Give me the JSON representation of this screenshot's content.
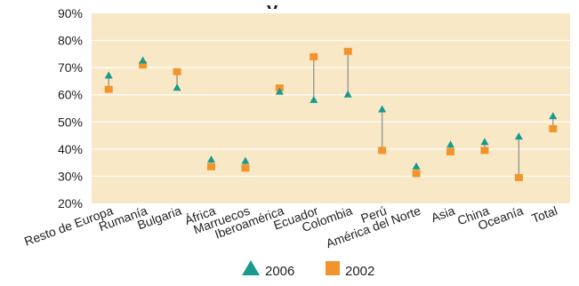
{
  "chart_data": {
    "type": "scatter",
    "title_fragment": "y",
    "categories": [
      "Resto de Europa",
      "Rumanía",
      "Bulgaria",
      "África",
      "Marruecos",
      "Iberoamérica",
      "Ecuador",
      "Colombia",
      "Perú",
      "América del Norte",
      "Asia",
      "China",
      "Oceanía",
      "Total"
    ],
    "series": [
      {
        "name": "2006",
        "marker": "triangle",
        "color": "#1a9a8c",
        "values": [
          67,
          72.5,
          62.5,
          36,
          35.5,
          61,
          58,
          60,
          54.5,
          33.5,
          41.5,
          42.5,
          44.5,
          52
        ]
      },
      {
        "name": "2002",
        "marker": "square",
        "color": "#f2942c",
        "values": [
          62,
          71,
          68.5,
          33.5,
          33,
          62.5,
          74,
          76,
          39.5,
          31,
          39,
          39.5,
          29.5,
          47.5
        ]
      }
    ],
    "ylim": [
      20,
      90
    ],
    "yticks": [
      "20%",
      "30%",
      "40%",
      "50%",
      "60%",
      "70%",
      "80%",
      "90%"
    ],
    "ytick_values": [
      20,
      30,
      40,
      50,
      60,
      70,
      80,
      90
    ],
    "grid": true,
    "legend_position": "bottom-center",
    "colors": {
      "plot_background": "#f9e8c6",
      "grid": "#ffffff",
      "connector": "#8a8a8a"
    }
  }
}
